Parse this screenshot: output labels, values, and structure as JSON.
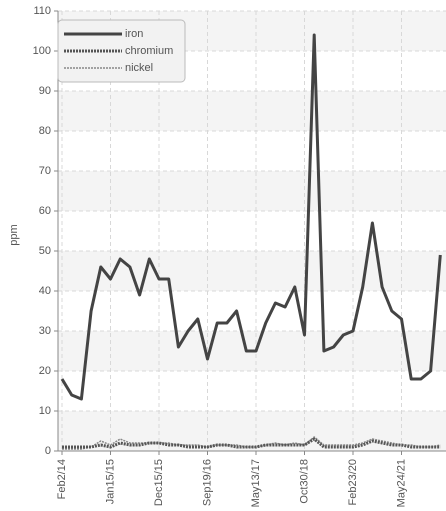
{
  "chart_data": {
    "type": "line",
    "y_label": "ppm",
    "categories": [
      "Feb2/14",
      null,
      null,
      null,
      null,
      "Jan15/15",
      null,
      null,
      null,
      null,
      "Dec15/15",
      null,
      null,
      null,
      null,
      "Sep19/16",
      null,
      null,
      null,
      null,
      "May13/17",
      null,
      null,
      null,
      null,
      "Oct30/18",
      null,
      null,
      null,
      null,
      "Feb23/20",
      null,
      null,
      null,
      null,
      "May24/21",
      null,
      null,
      null,
      null
    ],
    "series": [
      {
        "name": "iron",
        "color": "#444444",
        "width": 3,
        "dash": "none",
        "values": [
          18,
          14,
          13,
          35,
          46,
          43,
          48,
          46,
          39,
          48,
          43,
          43,
          26,
          30,
          33,
          23,
          32,
          32,
          35,
          25,
          25,
          32,
          37,
          36,
          41,
          29,
          104,
          25,
          26,
          29,
          30,
          41,
          57,
          41,
          35,
          33,
          18,
          18,
          20,
          49
        ]
      },
      {
        "name": "chromium",
        "color": "#555555",
        "width": 3,
        "dash": "2 1",
        "values": [
          1,
          1,
          1,
          1,
          1.5,
          1,
          2,
          1.5,
          1.5,
          2,
          2,
          1.5,
          1.5,
          1,
          1,
          1,
          1.5,
          1.5,
          1,
          1,
          1,
          1.5,
          1.5,
          1.5,
          1.5,
          1.5,
          3,
          1,
          1,
          1,
          1,
          1.5,
          2.5,
          2,
          1.5,
          1.5,
          1,
          1,
          1,
          1
        ]
      },
      {
        "name": "nickel",
        "color": "#888888",
        "width": 1.5,
        "dash": "2 1",
        "values": [
          0.5,
          0.5,
          0.5,
          1,
          2.5,
          1.5,
          3,
          2,
          2,
          2,
          2,
          2,
          1.5,
          1.5,
          1.5,
          1,
          1.5,
          1.5,
          1.5,
          1,
          1,
          1.5,
          2,
          1.5,
          2,
          1.5,
          3.5,
          1.5,
          1.5,
          1.5,
          1.5,
          2,
          3,
          2.5,
          2,
          1.5,
          1.5,
          1,
          1,
          1.5
        ]
      }
    ],
    "ylim": [
      0,
      110
    ],
    "yticks": [
      0,
      10,
      20,
      30,
      40,
      50,
      60,
      70,
      80,
      90,
      100,
      110
    ],
    "grid": true,
    "legend": "top-left"
  }
}
